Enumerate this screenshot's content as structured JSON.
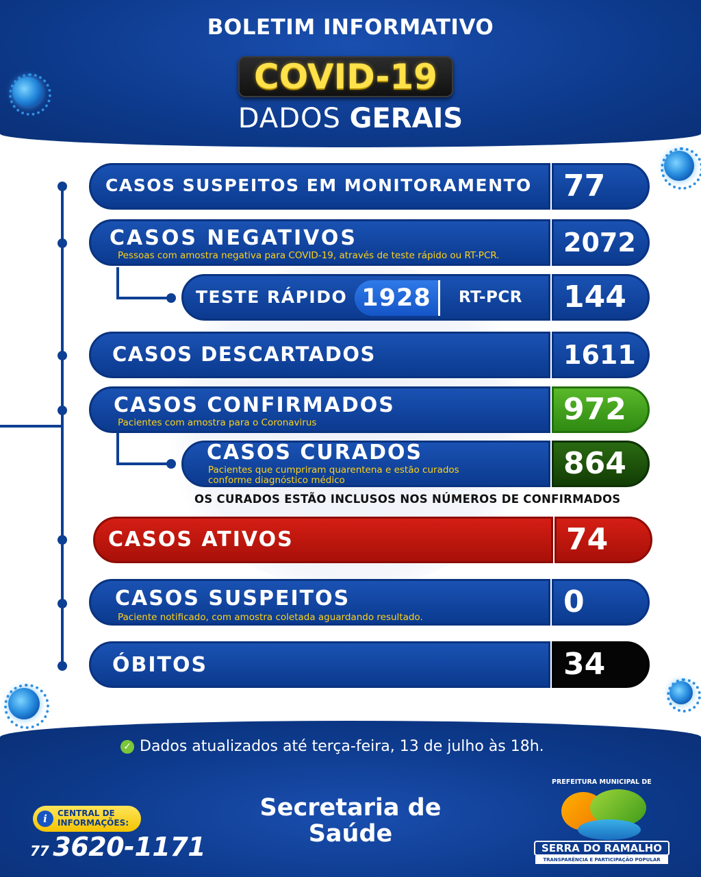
{
  "header": {
    "title": "BOLETIM INFORMATIVO",
    "badge": "COVID-19",
    "subtitle_light": "DADOS",
    "subtitle_bold": "GERAIS"
  },
  "rows": {
    "monitoring": {
      "label": "CASOS SUSPEITOS EM MONITORAMENTO",
      "value": "77"
    },
    "negative": {
      "label": "CASOS NEGATIVOS",
      "note": "Pessoas com amostra negativa para COVID-19, através de teste rápido ou RT-PCR.",
      "value": "2072"
    },
    "tests": {
      "rapid_label": "TESTE RÁPIDO",
      "rapid_value": "1928",
      "pcr_label": "RT-PCR",
      "pcr_value": "144"
    },
    "discarded": {
      "label": "CASOS DESCARTADOS",
      "value": "1611"
    },
    "confirmed": {
      "label": "CASOS CONFIRMADOS",
      "note": "Pacientes com amostra para o Coronavirus",
      "value": "972"
    },
    "cured": {
      "label": "CASOS CURADOS",
      "note_line1": "Pacientes que cumpriram quarentena e estão curados",
      "note_line2": "conforme diagnóstico médico",
      "value": "864"
    },
    "cured_notice": "OS CURADOS ESTÃO INCLUSOS NOS NÚMEROS DE CONFIRMADOS",
    "active": {
      "label": "CASOS ATIVOS",
      "value": "74"
    },
    "suspected": {
      "label": "CASOS SUSPEITOS",
      "note": "Paciente notificado, com amostra coletada aguardando resultado.",
      "value": "0"
    },
    "deaths": {
      "label": "ÓBITOS",
      "value": "34"
    }
  },
  "footer": {
    "updated": "Dados atualizados até terça-feira, 13 de julho às 18h.",
    "secretaria_line1": "Secretaria de",
    "secretaria_line2": "Saúde",
    "info_line1": "CENTRAL DE",
    "info_line2": "INFORMAÇÕES:",
    "phone_ddd": "77",
    "phone_number": "3620-1171",
    "pref_label": "PREFEITURA MUNICIPAL DE",
    "city_name": "SERRA DO RAMALHO",
    "city_tagline": "TRANSPARÊNCIA E PARTICIPAÇÃO POPULAR"
  },
  "colors": {
    "primary_blue": "#0d3a8c",
    "badge_yellow": "#ffe14a",
    "note_yellow": "#ffd21a",
    "confirmed_green": "#3a9a1a",
    "cured_green": "#1d4f0a",
    "active_red": "#c3160e",
    "deaths_black": "#050505"
  }
}
